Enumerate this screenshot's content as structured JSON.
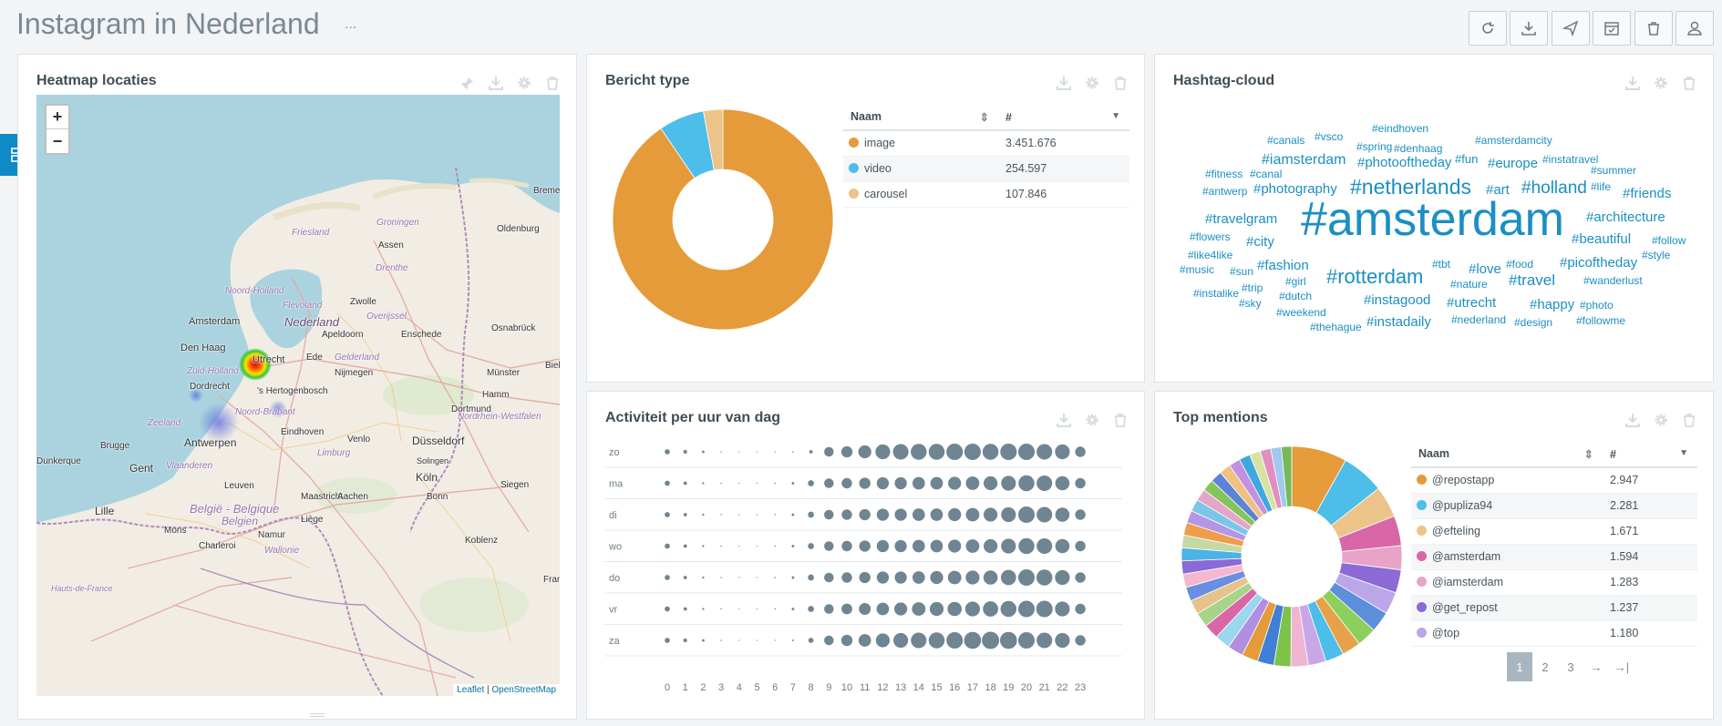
{
  "header": {
    "title": "Instagram in Nederland",
    "menu": "..."
  },
  "toolbar": [
    "refresh-icon",
    "download-icon",
    "send-icon",
    "calendar-check-icon",
    "trash-icon",
    "user-icon"
  ],
  "heatmap": {
    "title": "Heatmap locaties",
    "zoom_in": "+",
    "zoom_out": "−",
    "attribution_leaflet": "Leaflet",
    "attribution_sep": " | ",
    "attribution_osm": "OpenStreetMap",
    "places": [
      {
        "name": "Friesland"
      },
      {
        "name": "Groningen"
      },
      {
        "name": "Drenthe"
      },
      {
        "name": "Noord-Holland"
      },
      {
        "name": "Flevoland"
      },
      {
        "name": "Overijssel"
      },
      {
        "name": "Nederland"
      },
      {
        "name": "Amsterdam"
      },
      {
        "name": "Den Haag"
      },
      {
        "name": "Utrecht"
      },
      {
        "name": "Zuid-Holland"
      },
      {
        "name": "Gelderland"
      },
      {
        "name": "Dordrecht"
      },
      {
        "name": "'s Hertogenbosch"
      },
      {
        "name": "Noord-Brabant"
      },
      {
        "name": "Zeeland"
      },
      {
        "name": "Antwerpen"
      },
      {
        "name": "Eindhoven"
      },
      {
        "name": "Limburg"
      },
      {
        "name": "Venlo"
      },
      {
        "name": "Düsseldorf"
      },
      {
        "name": "Nordrhein-Westfalen"
      },
      {
        "name": "Brugge"
      },
      {
        "name": "Gent"
      },
      {
        "name": "Vlaanderen"
      },
      {
        "name": "Leuven"
      },
      {
        "name": "Maastricht"
      },
      {
        "name": "Aachen"
      },
      {
        "name": "Köln"
      },
      {
        "name": "Bonn"
      },
      {
        "name": "Siegen"
      },
      {
        "name": "Solingen"
      },
      {
        "name": "Lille"
      },
      {
        "name": "België - Belgique"
      },
      {
        "name": "Belgien"
      },
      {
        "name": "Liège"
      },
      {
        "name": "Mons"
      },
      {
        "name": "Namur"
      },
      {
        "name": "Charleroi"
      },
      {
        "name": "Wallonie"
      },
      {
        "name": "Koblenz"
      },
      {
        "name": "Hauts-de-France"
      },
      {
        "name": "Oldenburg"
      },
      {
        "name": "Assen"
      },
      {
        "name": "Zwolle"
      },
      {
        "name": "Apeldoorn"
      },
      {
        "name": "Enschede"
      },
      {
        "name": "Osnabrück"
      },
      {
        "name": "Münster"
      },
      {
        "name": "Bielefeld"
      },
      {
        "name": "Hamm"
      },
      {
        "name": "Dortmund"
      },
      {
        "name": "Nijmegen"
      },
      {
        "name": "Ede"
      },
      {
        "name": "Bremen"
      },
      {
        "name": "Dunkerque"
      },
      {
        "name": "Frankfurt"
      }
    ]
  },
  "bericht": {
    "title": "Bericht type",
    "col_name": "Naam",
    "col_count": "#",
    "rows": [
      {
        "name": "image",
        "value": "3.451.676",
        "color": "#e59b3a"
      },
      {
        "name": "video",
        "value": "254.597",
        "color": "#4dbde9"
      },
      {
        "name": "carousel",
        "value": "107.846",
        "color": "#ecc48a"
      }
    ],
    "numeric": [
      3451676,
      254597,
      107846
    ]
  },
  "hashtags": {
    "title": "Hashtag-cloud",
    "words": [
      {
        "text": "#canals",
        "size": 12
      },
      {
        "text": "#vsco",
        "size": 12
      },
      {
        "text": "#eindhoven",
        "size": 12
      },
      {
        "text": "#amsterdamcity",
        "size": 12
      },
      {
        "text": "#spring",
        "size": 12
      },
      {
        "text": "#denhaag",
        "size": 12
      },
      {
        "text": "#iamsterdam",
        "size": 16
      },
      {
        "text": "#instatravel",
        "size": 12
      },
      {
        "text": "#photooftheday",
        "size": 15
      },
      {
        "text": "#fun",
        "size": 13
      },
      {
        "text": "#europe",
        "size": 15
      },
      {
        "text": "#summer",
        "size": 12
      },
      {
        "text": "#fitness",
        "size": 12
      },
      {
        "text": "#canal",
        "size": 12
      },
      {
        "text": "#life",
        "size": 12
      },
      {
        "text": "#antwerp",
        "size": 12
      },
      {
        "text": "#photography",
        "size": 15
      },
      {
        "text": "#netherlands",
        "size": 23
      },
      {
        "text": "#art",
        "size": 15
      },
      {
        "text": "#holland",
        "size": 19
      },
      {
        "text": "#friends",
        "size": 15
      },
      {
        "text": "#travelgram",
        "size": 15
      },
      {
        "text": "#architecture",
        "size": 15
      },
      {
        "text": "#amsterdam",
        "size": 52
      },
      {
        "text": "#flowers",
        "size": 12
      },
      {
        "text": "#city",
        "size": 15
      },
      {
        "text": "#beautiful",
        "size": 15
      },
      {
        "text": "#follow",
        "size": 12
      },
      {
        "text": "#like4like",
        "size": 12
      },
      {
        "text": "#style",
        "size": 12
      },
      {
        "text": "#tbt",
        "size": 12
      },
      {
        "text": "#food",
        "size": 12
      },
      {
        "text": "#picoftheday",
        "size": 15
      },
      {
        "text": "#fashion",
        "size": 15
      },
      {
        "text": "#love",
        "size": 15
      },
      {
        "text": "#music",
        "size": 12
      },
      {
        "text": "#sun",
        "size": 12
      },
      {
        "text": "#rotterdam",
        "size": 22
      },
      {
        "text": "#travel",
        "size": 17
      },
      {
        "text": "#wanderlust",
        "size": 12
      },
      {
        "text": "#girl",
        "size": 12
      },
      {
        "text": "#nature",
        "size": 12
      },
      {
        "text": "#trip",
        "size": 12
      },
      {
        "text": "#instalike",
        "size": 12
      },
      {
        "text": "#dutch",
        "size": 12
      },
      {
        "text": "#instagood",
        "size": 15
      },
      {
        "text": "#utrecht",
        "size": 15
      },
      {
        "text": "#happy",
        "size": 15
      },
      {
        "text": "#photo",
        "size": 12
      },
      {
        "text": "#sky",
        "size": 12
      },
      {
        "text": "#weekend",
        "size": 12
      },
      {
        "text": "#thehague",
        "size": 12
      },
      {
        "text": "#instadaily",
        "size": 15
      },
      {
        "text": "#nederland",
        "size": 12
      },
      {
        "text": "#design",
        "size": 12
      },
      {
        "text": "#followme",
        "size": 12
      }
    ]
  },
  "activity": {
    "title": "Activiteit per uur van dag",
    "days": [
      "zo",
      "ma",
      "di",
      "wo",
      "do",
      "vr",
      "za"
    ],
    "hours": [
      "0",
      "1",
      "2",
      "3",
      "4",
      "5",
      "6",
      "7",
      "8",
      "9",
      "10",
      "11",
      "12",
      "13",
      "14",
      "15",
      "16",
      "17",
      "18",
      "19",
      "20",
      "21",
      "22",
      "23"
    ],
    "relative": [
      [
        0.3,
        0.22,
        0.15,
        0.08,
        0.05,
        0.05,
        0.05,
        0.08,
        0.2,
        0.55,
        0.65,
        0.75,
        0.85,
        0.9,
        0.92,
        0.92,
        0.95,
        0.95,
        0.92,
        0.95,
        0.95,
        0.9,
        0.85,
        0.6
      ],
      [
        0.3,
        0.2,
        0.12,
        0.08,
        0.05,
        0.05,
        0.08,
        0.15,
        0.35,
        0.55,
        0.6,
        0.65,
        0.7,
        0.7,
        0.72,
        0.72,
        0.75,
        0.78,
        0.8,
        0.85,
        0.92,
        0.9,
        0.82,
        0.6
      ],
      [
        0.3,
        0.2,
        0.12,
        0.08,
        0.05,
        0.05,
        0.08,
        0.15,
        0.35,
        0.55,
        0.6,
        0.65,
        0.7,
        0.7,
        0.72,
        0.72,
        0.75,
        0.78,
        0.8,
        0.85,
        0.95,
        0.9,
        0.82,
        0.6
      ],
      [
        0.3,
        0.2,
        0.12,
        0.08,
        0.05,
        0.05,
        0.08,
        0.15,
        0.35,
        0.55,
        0.6,
        0.65,
        0.7,
        0.7,
        0.72,
        0.72,
        0.75,
        0.78,
        0.8,
        0.85,
        0.92,
        0.9,
        0.82,
        0.6
      ],
      [
        0.3,
        0.2,
        0.12,
        0.08,
        0.05,
        0.05,
        0.08,
        0.15,
        0.35,
        0.55,
        0.6,
        0.65,
        0.7,
        0.7,
        0.72,
        0.75,
        0.78,
        0.8,
        0.82,
        0.88,
        0.95,
        0.92,
        0.85,
        0.6
      ],
      [
        0.3,
        0.2,
        0.12,
        0.08,
        0.05,
        0.05,
        0.08,
        0.15,
        0.35,
        0.55,
        0.62,
        0.68,
        0.72,
        0.75,
        0.78,
        0.8,
        0.82,
        0.85,
        0.88,
        0.92,
        0.95,
        0.95,
        0.85,
        0.6
      ],
      [
        0.3,
        0.22,
        0.15,
        0.08,
        0.05,
        0.05,
        0.05,
        0.1,
        0.3,
        0.55,
        0.65,
        0.72,
        0.8,
        0.85,
        0.9,
        0.92,
        0.95,
        0.98,
        1.0,
        0.98,
        0.95,
        0.9,
        0.85,
        0.6
      ]
    ]
  },
  "mentions": {
    "title": "Top mentions",
    "col_name": "Naam",
    "col_count": "#",
    "rows": [
      {
        "name": "@repostapp",
        "value": "2.947",
        "color": "#e59b3a"
      },
      {
        "name": "@pupliza94",
        "value": "2.281",
        "color": "#4dbde9"
      },
      {
        "name": "@efteling",
        "value": "1.671",
        "color": "#ecc48a"
      },
      {
        "name": "@amsterdam",
        "value": "1.594",
        "color": "#d967a7"
      },
      {
        "name": "@iamsterdam",
        "value": "1.283",
        "color": "#e9a3c8"
      },
      {
        "name": "@get_repost",
        "value": "1.237",
        "color": "#8c6ad6"
      },
      {
        "name": "@top",
        "value": "1.180",
        "color": "#bba6e8"
      }
    ],
    "pages": [
      "1",
      "2",
      "3"
    ],
    "next": "→",
    "last": "→|"
  }
}
